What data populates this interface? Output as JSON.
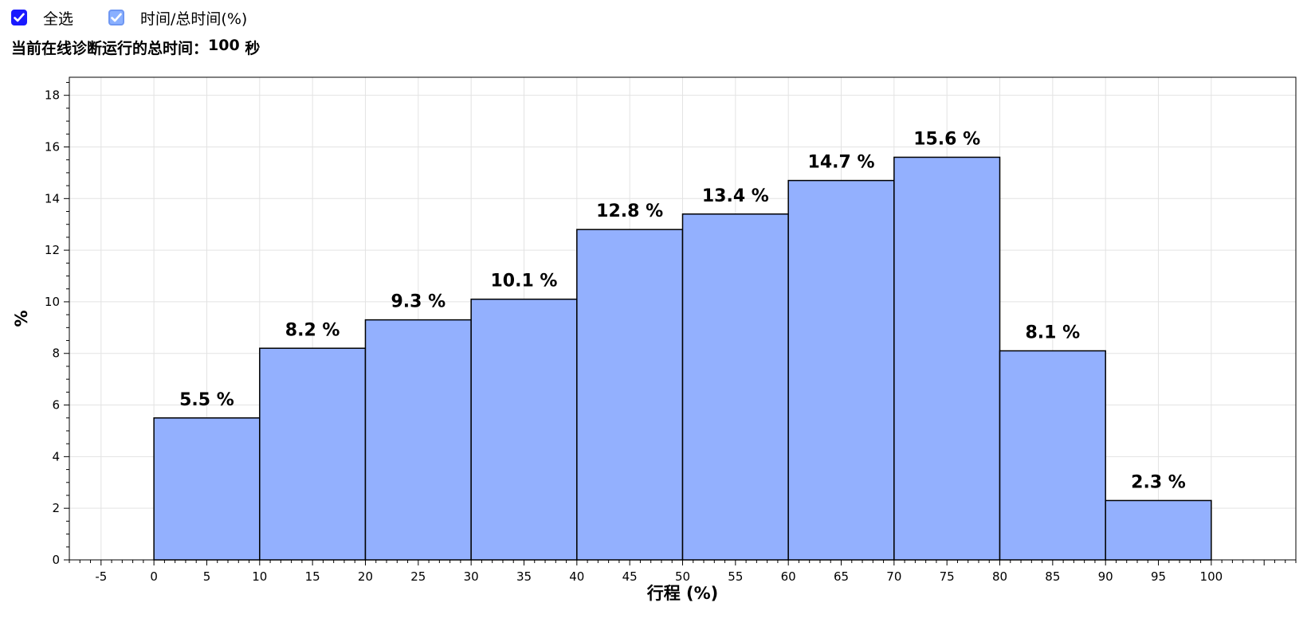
{
  "controls": {
    "select_all": {
      "label": "全选",
      "checked": true
    },
    "time_ratio": {
      "label": "时间/总时间(%)",
      "checked": true
    }
  },
  "summary": {
    "label": "当前在线诊断运行的总时间：",
    "value": "100",
    "unit": "秒"
  },
  "colors": {
    "bar_fill": "#93b0fe",
    "bar_stroke": "#000000",
    "grid": "#e3e3e3",
    "checkbox_primary": "#1a1aff",
    "checkbox_secondary": "#8ab0ff"
  },
  "chart_data": {
    "type": "bar",
    "xlabel": "行程 (%)",
    "ylabel": "%",
    "xlim": [
      -8,
      108
    ],
    "ylim": [
      0,
      18.7
    ],
    "x_ticks": [
      -5,
      0,
      5,
      10,
      15,
      20,
      25,
      30,
      35,
      40,
      45,
      50,
      55,
      60,
      65,
      70,
      75,
      80,
      85,
      90,
      95,
      100
    ],
    "y_ticks": [
      0,
      2,
      4,
      6,
      8,
      10,
      12,
      14,
      16,
      18
    ],
    "grid": true,
    "bins": [
      {
        "x0": 0,
        "x1": 10,
        "value": 5.5,
        "label": "5.5 %"
      },
      {
        "x0": 10,
        "x1": 20,
        "value": 8.2,
        "label": "8.2 %"
      },
      {
        "x0": 20,
        "x1": 30,
        "value": 9.3,
        "label": "9.3 %"
      },
      {
        "x0": 30,
        "x1": 40,
        "value": 10.1,
        "label": "10.1 %"
      },
      {
        "x0": 40,
        "x1": 50,
        "value": 12.8,
        "label": "12.8 %"
      },
      {
        "x0": 50,
        "x1": 60,
        "value": 13.4,
        "label": "13.4 %"
      },
      {
        "x0": 60,
        "x1": 70,
        "value": 14.7,
        "label": "14.7 %"
      },
      {
        "x0": 70,
        "x1": 80,
        "value": 15.6,
        "label": "15.6 %"
      },
      {
        "x0": 80,
        "x1": 90,
        "value": 8.1,
        "label": "8.1 %"
      },
      {
        "x0": 90,
        "x1": 100,
        "value": 2.3,
        "label": "2.3 %"
      }
    ]
  }
}
